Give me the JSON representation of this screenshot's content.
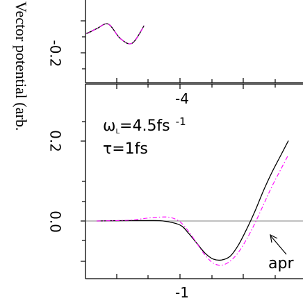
{
  "chart_data": [
    {
      "type": "line",
      "panel": "top",
      "ylabel": "Vector potential (arb.",
      "ytick_labels": [
        {
          "value": -0.2,
          "label": "-0.2"
        }
      ],
      "xtick_labels": [
        {
          "value": -4,
          "label": "-4"
        }
      ],
      "series": [
        {
          "color": "#000000",
          "style": "solid",
          "x": [
            -4.35,
            -4.32,
            -4.28,
            -4.24,
            -4.2,
            -4.16,
            -4.12
          ],
          "y": [
            -0.04,
            -0.08,
            -0.05,
            -0.02,
            -0.11,
            -0.14,
            -0.03
          ]
        },
        {
          "color": "#ff00ff",
          "style": "dash-dot",
          "x": [
            -4.35,
            -4.32,
            -4.28,
            -4.24,
            -4.2,
            -4.16,
            -4.12
          ],
          "y": [
            -0.04,
            -0.08,
            -0.05,
            -0.02,
            -0.11,
            -0.14,
            -0.03
          ]
        }
      ]
    },
    {
      "type": "line",
      "panel": "bottom",
      "annotations": {
        "omega_L": "ω",
        "omega_sub": "L",
        "omega_value": "=4.5fs",
        "omega_exp": "-1",
        "tau": "τ=1fs",
        "arrow_label": "apr"
      },
      "ytick_labels": [
        {
          "value": 0.2,
          "label": "0.2"
        },
        {
          "value": 0.0,
          "label": "0.0"
        }
      ],
      "xtick_labels": [
        {
          "value": -1,
          "label": "-1"
        }
      ],
      "ylim": [
        -0.125,
        0.22
      ],
      "series": [
        {
          "color": "#000000",
          "style": "solid",
          "x": [
            -2.0,
            -1.6,
            -1.4,
            -1.2,
            -1.0,
            -0.9,
            -0.8,
            -0.7,
            -0.6,
            -0.5,
            -0.4,
            -0.3,
            -0.2,
            -0.1,
            0.0,
            0.1,
            0.2,
            0.3
          ],
          "y": [
            0.0,
            0.001,
            0.001,
            0.0,
            -0.01,
            -0.03,
            -0.055,
            -0.08,
            -0.095,
            -0.097,
            -0.088,
            -0.06,
            -0.02,
            0.025,
            0.075,
            0.12,
            0.16,
            0.2
          ]
        },
        {
          "color": "#ff00ff",
          "style": "dash-dot",
          "x": [
            -2.0,
            -1.6,
            -1.4,
            -1.2,
            -1.1,
            -1.0,
            -0.9,
            -0.8,
            -0.7,
            -0.6,
            -0.5,
            -0.4,
            -0.3,
            -0.2,
            -0.1,
            0.0,
            0.1,
            0.2,
            0.3
          ],
          "y": [
            0.0,
            0.002,
            0.007,
            0.01,
            0.008,
            -0.002,
            -0.025,
            -0.055,
            -0.085,
            -0.105,
            -0.11,
            -0.1,
            -0.078,
            -0.045,
            -0.005,
            0.04,
            0.085,
            0.125,
            0.165
          ]
        }
      ]
    }
  ]
}
